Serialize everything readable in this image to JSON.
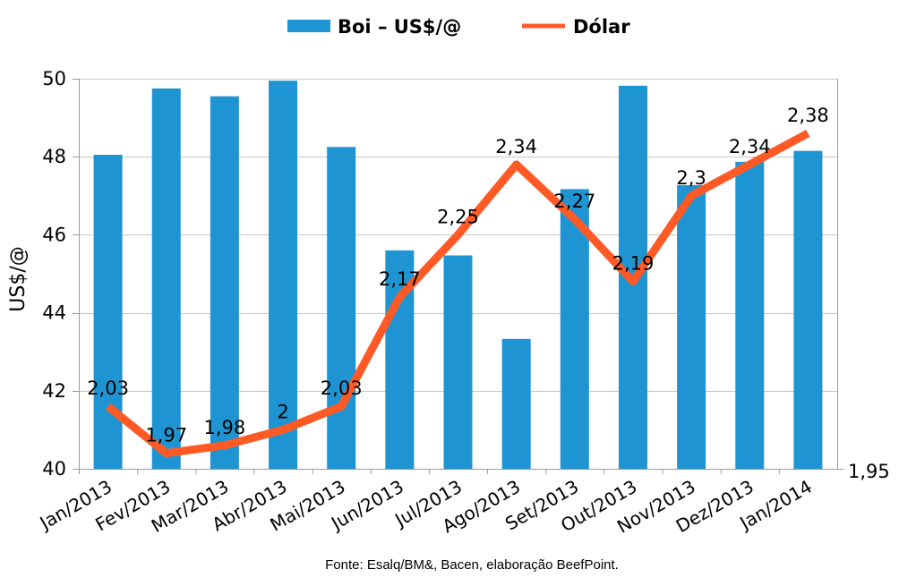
{
  "chart_data": {
    "type": "bar+line",
    "categories": [
      "Jan/2013",
      "Fev/2013",
      "Mar/2013",
      "Abr/2013",
      "Mai/2013",
      "Jun/2013",
      "Jul/2013",
      "Ago/2013",
      "Set/2013",
      "Out/2013",
      "Nov/2013",
      "Dez/2013",
      "Jan/2014"
    ],
    "series": [
      {
        "name": "Boi – US$/@",
        "type": "bar",
        "axis": "left",
        "color": "#1F94D2",
        "values": [
          48.05,
          49.75,
          49.55,
          49.95,
          48.25,
          45.6,
          45.47,
          43.33,
          47.17,
          49.82,
          47.27,
          47.87,
          48.15
        ]
      },
      {
        "name": "Dólar",
        "type": "line",
        "axis": "right",
        "color": "#FF5A26",
        "values": [
          2.03,
          1.97,
          1.98,
          2.0,
          2.03,
          2.17,
          2.25,
          2.34,
          2.27,
          2.19,
          2.3,
          2.34,
          2.38
        ],
        "labels": [
          "2,03",
          "1,97",
          "1,98",
          "2",
          "2,03",
          "2,17",
          "2,25",
          "2,34",
          "2,27",
          "2,19",
          "2,3",
          "2,34",
          "2,38"
        ]
      }
    ],
    "ylabel": "US$/@",
    "ylim": [
      40,
      50
    ],
    "yticks": [
      "40",
      "42",
      "44",
      "46",
      "48",
      "50"
    ],
    "y2lim": [
      1.95,
      2.45
    ],
    "y2ticks": [
      "1,95"
    ],
    "grid": true,
    "legend": "top-center",
    "source": "Fonte: Esalq/BM&, Bacen, elaboração BeefPoint."
  }
}
